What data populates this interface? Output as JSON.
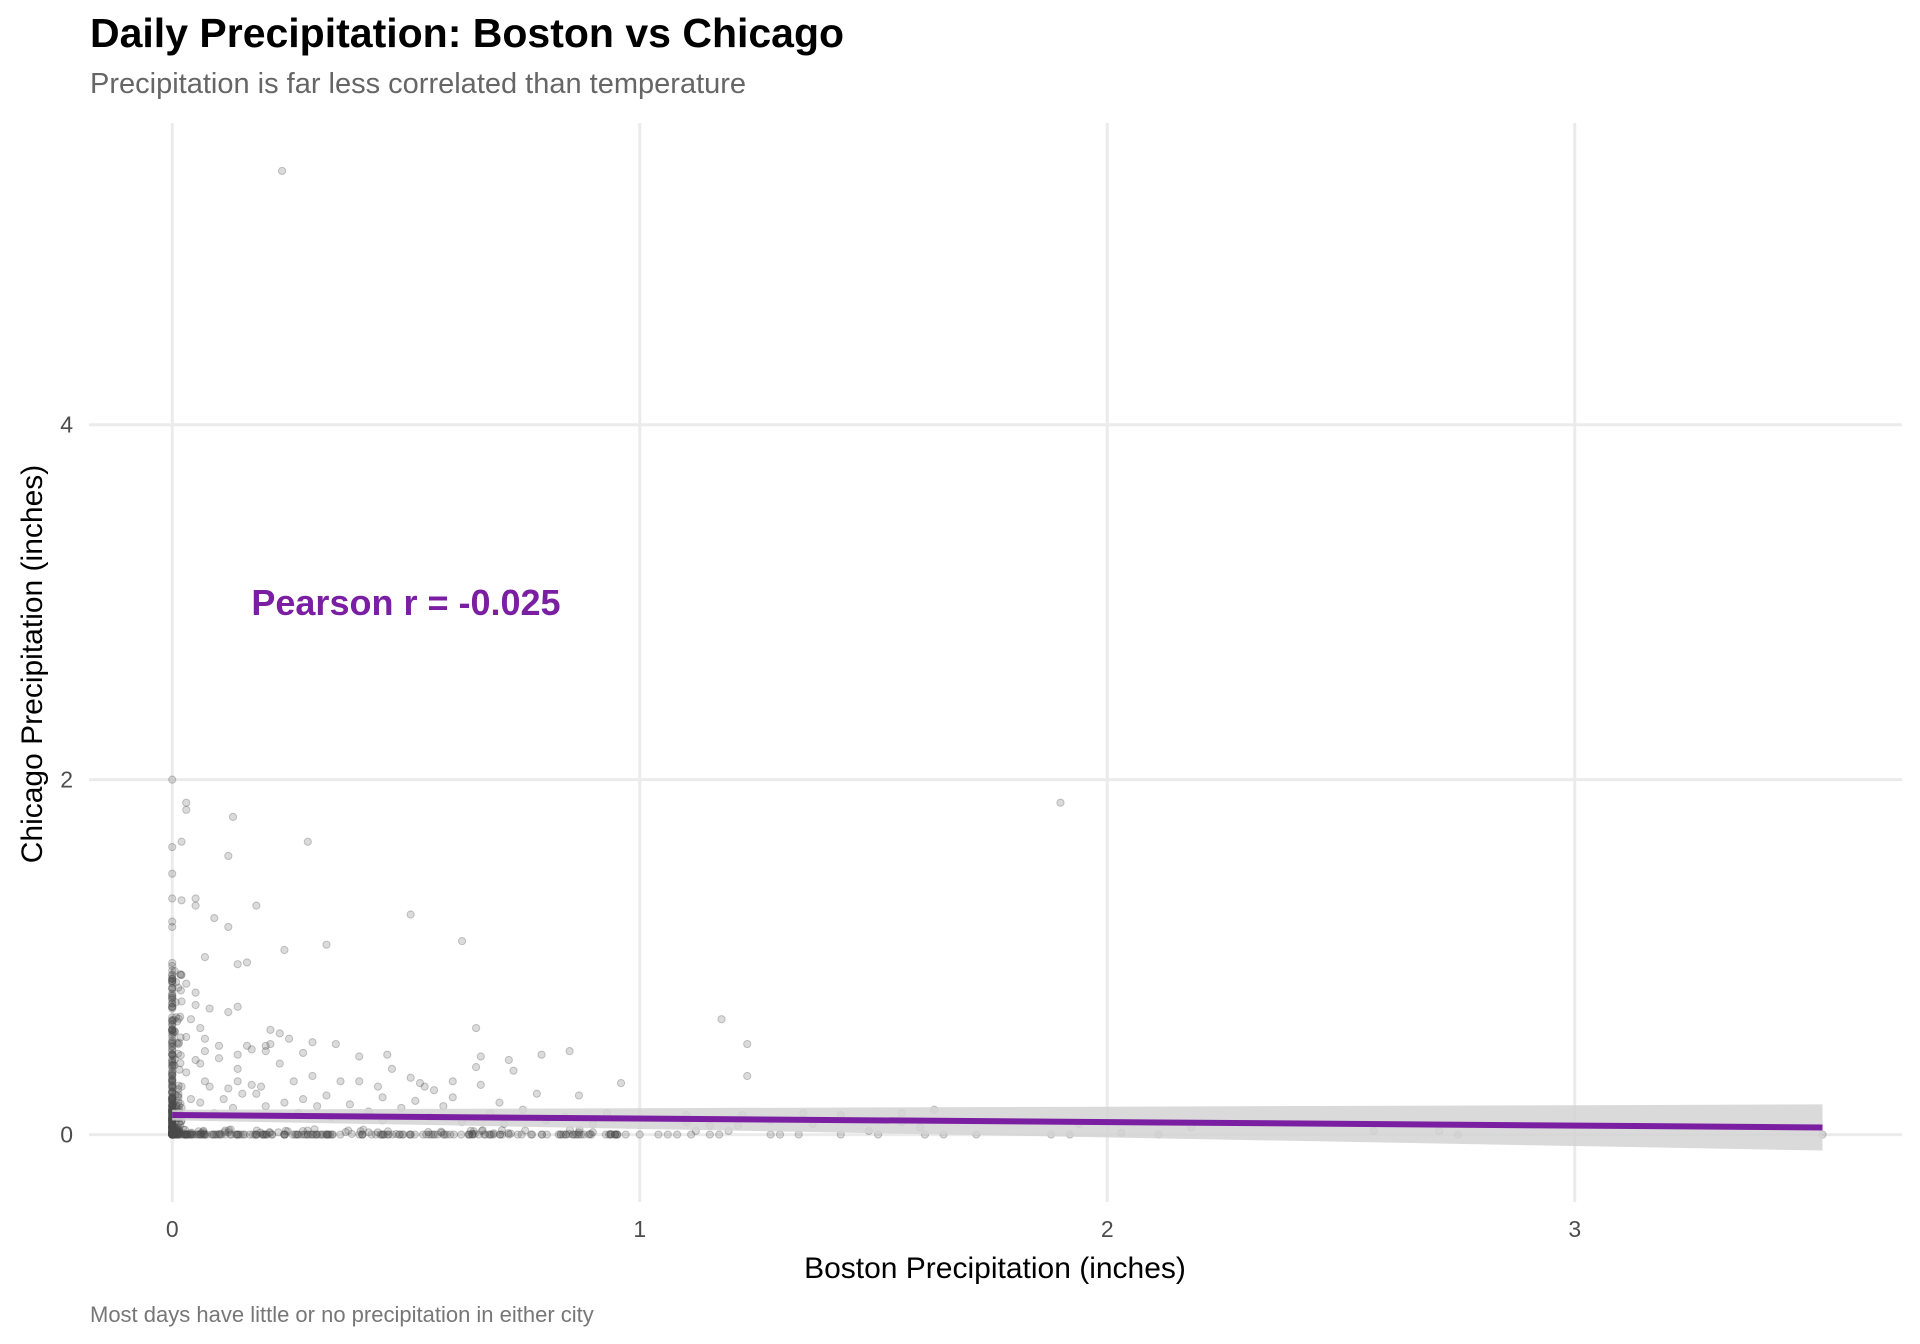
{
  "chart_data": {
    "type": "scatter",
    "title": "Daily Precipitation: Boston vs Chicago",
    "subtitle": "Precipitation is far less correlated than temperature",
    "caption": "Most days have little or no precipitation in either city",
    "xlabel": "Boston Precipitation (inches)",
    "ylabel": "Chicago Precipitation (inches)",
    "xlim": [
      -0.178,
      3.7
    ],
    "ylim": [
      -0.38,
      5.7
    ],
    "xticks": [
      0,
      1,
      2,
      3
    ],
    "yticks": [
      0,
      2,
      4
    ],
    "grid": true,
    "point_color": "#4d4d4d",
    "point_opacity": 0.2,
    "annotation": {
      "text": "Pearson r = -0.025",
      "x": 0.5,
      "y": 3.0,
      "color": "#7B1FA2"
    },
    "trend": {
      "color": "#7B1FA2",
      "ci_color": "#d3d3d3",
      "x": [
        0,
        3.53
      ],
      "y": [
        0.11,
        0.04
      ],
      "ci_lower": [
        0.08,
        -0.09
      ],
      "ci_upper": [
        0.14,
        0.17
      ]
    },
    "points": [
      [
        0.235,
        5.43
      ],
      [
        1.9,
        1.87
      ],
      [
        0,
        2.0
      ],
      [
        0.03,
        1.87
      ],
      [
        0.03,
        1.83
      ],
      [
        0.13,
        1.79
      ],
      [
        0,
        1.62
      ],
      [
        0.02,
        1.65
      ],
      [
        0.29,
        1.65
      ],
      [
        0.12,
        1.57
      ],
      [
        0,
        1.47
      ],
      [
        0,
        1.33
      ],
      [
        0.02,
        1.32
      ],
      [
        0.05,
        1.33
      ],
      [
        0.05,
        1.29
      ],
      [
        0.18,
        1.29
      ],
      [
        0.09,
        1.22
      ],
      [
        0.12,
        1.17
      ],
      [
        0,
        1.2
      ],
      [
        0,
        1.17
      ],
      [
        0.51,
        1.24
      ],
      [
        0.62,
        1.09
      ],
      [
        0.33,
        1.07
      ],
      [
        0.24,
        1.04
      ],
      [
        0.07,
        1.0
      ],
      [
        0.14,
        0.96
      ],
      [
        0.16,
        0.97
      ],
      [
        1.175,
        0.65
      ],
      [
        1.23,
        0.51
      ],
      [
        1.23,
        0.33
      ],
      [
        0.05,
        0.73
      ],
      [
        0.08,
        0.71
      ],
      [
        0.12,
        0.69
      ],
      [
        0.14,
        0.72
      ],
      [
        0.06,
        0.6
      ],
      [
        0.21,
        0.59
      ],
      [
        0.23,
        0.57
      ],
      [
        0.07,
        0.54
      ],
      [
        0.16,
        0.5
      ],
      [
        0.17,
        0.48
      ],
      [
        0.2,
        0.5
      ],
      [
        0.2,
        0.47
      ],
      [
        0.07,
        0.47
      ],
      [
        0.1,
        0.5
      ],
      [
        0.14,
        0.45
      ],
      [
        0.21,
        0.51
      ],
      [
        0.25,
        0.54
      ],
      [
        0.28,
        0.46
      ],
      [
        0.3,
        0.52
      ],
      [
        0.35,
        0.51
      ],
      [
        0.4,
        0.44
      ],
      [
        0.46,
        0.45
      ],
      [
        0.47,
        0.37
      ],
      [
        0.51,
        0.32
      ],
      [
        0.54,
        0.27
      ],
      [
        0.66,
        0.44
      ],
      [
        0.72,
        0.42
      ],
      [
        0.65,
        0.38
      ],
      [
        0.73,
        0.36
      ],
      [
        0.66,
        0.28
      ],
      [
        0.65,
        0.6
      ],
      [
        0.85,
        0.47
      ],
      [
        0.79,
        0.45
      ],
      [
        0.1,
        0.43
      ],
      [
        0.14,
        0.37
      ],
      [
        0.23,
        0.4
      ],
      [
        0.06,
        0.4
      ],
      [
        0.3,
        0.33
      ],
      [
        0.6,
        0.3
      ],
      [
        0.36,
        0.3
      ],
      [
        0.4,
        0.3
      ],
      [
        0.44,
        0.27
      ],
      [
        0.53,
        0.29
      ],
      [
        0.78,
        0.23
      ],
      [
        0.87,
        0.22
      ],
      [
        0.96,
        0.29
      ],
      [
        0.14,
        0.3
      ],
      [
        0.17,
        0.28
      ],
      [
        0.12,
        0.26
      ],
      [
        0.07,
        0.3
      ],
      [
        0.08,
        0.27
      ],
      [
        0.02,
        0.27
      ],
      [
        0.15,
        0.23
      ],
      [
        0.18,
        0.23
      ],
      [
        0.19,
        0.27
      ],
      [
        0.26,
        0.3
      ],
      [
        0.02,
        0.9
      ],
      [
        0.03,
        0.85
      ],
      [
        0.05,
        0.8
      ],
      [
        0.02,
        0.75
      ],
      [
        0.04,
        0.65
      ],
      [
        0.03,
        0.55
      ],
      [
        0.05,
        0.42
      ],
      [
        0.03,
        0.35
      ],
      [
        0.04,
        0.2
      ],
      [
        0.02,
        0.15
      ],
      [
        0.06,
        0.18
      ],
      [
        0.09,
        0.12
      ],
      [
        0.11,
        0.2
      ],
      [
        0.13,
        0.15
      ],
      [
        0.2,
        0.16
      ],
      [
        0.24,
        0.18
      ],
      [
        0.27,
        0.12
      ],
      [
        0.31,
        0.16
      ],
      [
        0.34,
        0.1
      ],
      [
        0.38,
        0.17
      ],
      [
        0.42,
        0.13
      ],
      [
        0.45,
        0.08
      ],
      [
        0.49,
        0.15
      ],
      [
        0.55,
        0.1
      ],
      [
        0.58,
        0.16
      ],
      [
        0.62,
        0.07
      ],
      [
        0.68,
        0.12
      ],
      [
        0.71,
        0.06
      ],
      [
        0.75,
        0.14
      ],
      [
        0.8,
        0.08
      ],
      [
        0.84,
        0.1
      ],
      [
        0.9,
        0.06
      ],
      [
        0.93,
        0.12
      ],
      [
        0.28,
        0.2
      ],
      [
        0.33,
        0.22
      ],
      [
        0.45,
        0.21
      ],
      [
        0.52,
        0.19
      ],
      [
        0.6,
        0.21
      ],
      [
        0.7,
        0.18
      ],
      [
        0.56,
        0.25
      ],
      [
        0.97,
        0
      ],
      [
        1.0,
        0
      ],
      [
        1.04,
        0
      ],
      [
        1.06,
        0
      ],
      [
        1.08,
        0
      ],
      [
        1.11,
        0
      ],
      [
        1.12,
        0.02
      ],
      [
        1.15,
        0
      ],
      [
        1.17,
        0
      ],
      [
        1.19,
        0.02
      ],
      [
        1.21,
        0.05
      ],
      [
        1.22,
        0.11
      ],
      [
        1.1,
        0.11
      ],
      [
        1.1,
        0.07
      ],
      [
        1.15,
        0.05
      ],
      [
        1.28,
        0
      ],
      [
        1.3,
        0
      ],
      [
        1.34,
        0
      ],
      [
        1.35,
        0.12
      ],
      [
        1.28,
        0.08
      ],
      [
        1.37,
        0.06
      ],
      [
        1.43,
        0.11
      ],
      [
        1.43,
        0
      ],
      [
        1.49,
        0.02
      ],
      [
        1.51,
        0
      ],
      [
        1.56,
        0.12
      ],
      [
        1.56,
        0.07
      ],
      [
        1.63,
        0.14
      ],
      [
        1.6,
        0.04
      ],
      [
        1.61,
        0
      ],
      [
        1.65,
        0
      ],
      [
        1.72,
        0
      ],
      [
        1.88,
        0
      ],
      [
        1.92,
        0
      ],
      [
        1.94,
        0.06
      ],
      [
        2.03,
        0.01
      ],
      [
        2.11,
        0
      ],
      [
        2.18,
        0.04
      ],
      [
        2.57,
        0.02
      ],
      [
        2.71,
        0.02
      ],
      [
        2.75,
        0
      ],
      [
        3.53,
        0
      ]
    ],
    "dense_clusters": {
      "note": "many overlapping points along both axes",
      "x_zero_column": {
        "x": 0,
        "y_range": [
          0,
          0.97
        ],
        "count": 300
      },
      "y_zero_row": {
        "y": 0,
        "x_range": [
          0,
          0.97
        ],
        "count": 260
      }
    }
  }
}
